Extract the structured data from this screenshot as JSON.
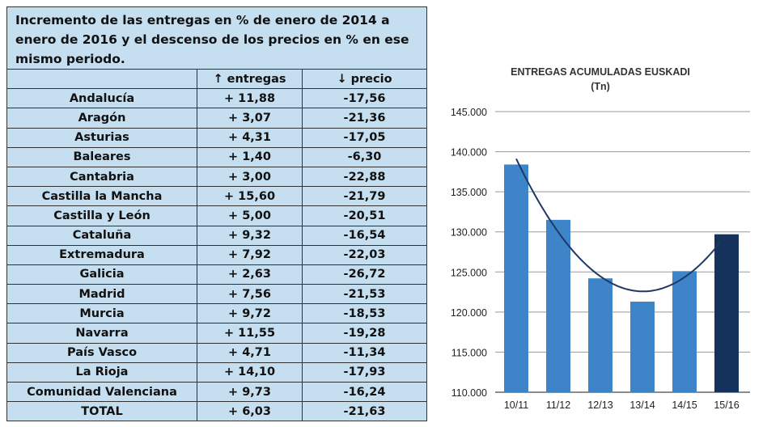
{
  "table": {
    "title": "Incremento de las entregas en % de enero de 2014 a enero de 2016 y el descenso de los precios en % en ese mismo periodo.",
    "headers": [
      "",
      "↑ entregas",
      "↓ precio"
    ],
    "rows": [
      [
        "Andalucía",
        "+ 11,88",
        "-17,56"
      ],
      [
        "Aragón",
        "+ 3,07",
        "-21,36"
      ],
      [
        "Asturias",
        "+ 4,31",
        "-17,05"
      ],
      [
        "Baleares",
        "+ 1,40",
        "-6,30"
      ],
      [
        "Cantabria",
        "+ 3,00",
        "-22,88"
      ],
      [
        "Castilla la Mancha",
        "+ 15,60",
        "-21,79"
      ],
      [
        "Castilla y León",
        "+ 5,00",
        "-20,51"
      ],
      [
        "Cataluña",
        "+ 9,32",
        "-16,54"
      ],
      [
        "Extremadura",
        "+ 7,92",
        "-22,03"
      ],
      [
        "Galicia",
        "+ 2,63",
        "-26,72"
      ],
      [
        "Madrid",
        "+ 7,56",
        "-21,53"
      ],
      [
        "Murcia",
        "+ 9,72",
        "-18,53"
      ],
      [
        "Navarra",
        "+ 11,55",
        "-19,28"
      ],
      [
        "País Vasco",
        "+ 4,71",
        "-11,34"
      ],
      [
        "La Rioja",
        "+ 14,10",
        "-17,93"
      ],
      [
        "Comunidad Valenciana",
        "+ 9,73",
        "-16,24"
      ],
      [
        "TOTAL",
        "+ 6,03",
        "-21,63"
      ]
    ]
  },
  "chart_data": {
    "type": "bar",
    "title": "ENTREGAS ACUMULADAS EUSKADI",
    "subtitle": "(Tn)",
    "categories": [
      "10/11",
      "11/12",
      "12/13",
      "13/14",
      "14/15",
      "15/16"
    ],
    "values": [
      138400,
      131500,
      124200,
      121300,
      125100,
      129700
    ],
    "bar_colors": [
      "#3d85c8",
      "#3d85c8",
      "#3d85c8",
      "#3d85c8",
      "#3d85c8",
      "#14325c"
    ],
    "ylim": [
      110000,
      145000
    ],
    "yticks": [
      110000,
      115000,
      120000,
      125000,
      130000,
      135000,
      140000,
      145000
    ],
    "ytick_labels": [
      "110.000",
      "115.000",
      "120.000",
      "125.000",
      "130.000",
      "135.000",
      "140.000",
      "145.000"
    ],
    "trendline": "polynomial",
    "trend_color": "#1f3864",
    "grid": true
  }
}
